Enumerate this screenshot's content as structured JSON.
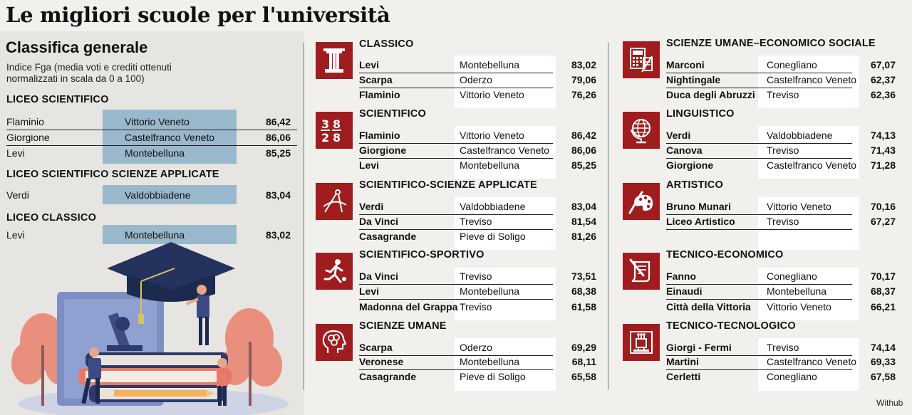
{
  "title": "Le migliori scuole per l'università",
  "left": {
    "heading": "Classifica generale",
    "subtitle": "Indice Fga (media voti e crediti ottenuti normalizzati in scala da 0 a 100)",
    "sections": [
      {
        "title": "LICEO SCIENTIFICO",
        "rows": [
          {
            "name": "Flaminio",
            "city": "Vittorio Veneto",
            "value": "86,42"
          },
          {
            "name": "Giorgione",
            "city": "Castelfranco Veneto",
            "value": "86,06"
          },
          {
            "name": "Levi",
            "city": "Montebelluna",
            "value": "85,25"
          }
        ]
      },
      {
        "title": "LICEO SCIENTIFICO SCIENZE APPLICATE",
        "rows": [
          {
            "name": "Verdi",
            "city": "Valdobbiadene",
            "value": "83,04"
          }
        ]
      },
      {
        "title": "LICEO CLASSICO",
        "rows": [
          {
            "name": "Levi",
            "city": "Montebelluna",
            "value": "83,02"
          }
        ]
      }
    ]
  },
  "categories": [
    {
      "title": "CLASSICO",
      "icon": "column-icon",
      "rows": [
        {
          "name": "Levi",
          "city": "Montebelluna",
          "value": "83,02"
        },
        {
          "name": "Scarpa",
          "city": "Oderzo",
          "value": "79,06"
        },
        {
          "name": "Flaminio",
          "city": "Vittorio Veneto",
          "value": "76,26"
        }
      ]
    },
    {
      "title": "SCIENTIFICO",
      "icon": "fractions-icon",
      "rows": [
        {
          "name": "Flaminio",
          "city": "Vittorio Veneto",
          "value": "86,42"
        },
        {
          "name": "Giorgione",
          "city": "Castelfranco Veneto",
          "value": "86,06"
        },
        {
          "name": "Levi",
          "city": "Montebelluna",
          "value": "85,25"
        }
      ]
    },
    {
      "title": "SCIENTIFICO-SCIENZE APPLICATE",
      "icon": "compass-icon",
      "rows": [
        {
          "name": "Verdi",
          "city": "Valdobbiadene",
          "value": "83,04"
        },
        {
          "name": "Da Vinci",
          "city": "Treviso",
          "value": "81,54"
        },
        {
          "name": "Casagrande",
          "city": "Pieve di Soligo",
          "value": "81,26"
        }
      ]
    },
    {
      "title": "SCIENTIFICO-SPORTIVO",
      "icon": "runner-icon",
      "rows": [
        {
          "name": "Da Vinci",
          "city": "Treviso",
          "value": "73,51"
        },
        {
          "name": "Levi",
          "city": "Montebelluna",
          "value": "68,38"
        },
        {
          "name": "Madonna del Grappa",
          "city": "Treviso",
          "value": "61,58"
        }
      ]
    },
    {
      "title": "SCIENZE UMANE",
      "icon": "brain-head-icon",
      "rows": [
        {
          "name": "Scarpa",
          "city": "Oderzo",
          "value": "69,29"
        },
        {
          "name": "Veronese",
          "city": "Montebelluna",
          "value": "68,11"
        },
        {
          "name": "Casagrande",
          "city": "Pieve di Soligo",
          "value": "65,58"
        }
      ]
    },
    {
      "title": "SCIENZE UMANE–ECONOMICO SOCIALE",
      "icon": "calculator-icon",
      "rows": [
        {
          "name": "Marconi",
          "city": "Conegliano",
          "value": "67,07"
        },
        {
          "name": "Nightingale",
          "city": "Castelfranco Veneto",
          "value": "62,37"
        },
        {
          "name": "Duca degli Abruzzi",
          "city": "Treviso",
          "value": "62,36"
        }
      ]
    },
    {
      "title": "LINGUISTICO",
      "icon": "globe-icon",
      "rows": [
        {
          "name": "Verdi",
          "city": "Valdobbiadene",
          "value": "74,13"
        },
        {
          "name": "Canova",
          "city": "Treviso",
          "value": "71,43"
        },
        {
          "name": "Giorgione",
          "city": "Castelfranco Veneto",
          "value": "71,28"
        }
      ]
    },
    {
      "title": "ARTISTICO",
      "icon": "palette-icon",
      "rows": [
        {
          "name": "Bruno Munari",
          "city": "Vittorio Veneto",
          "value": "70,16"
        },
        {
          "name": "Liceo Artistico",
          "city": "Treviso",
          "value": "67,27"
        }
      ]
    },
    {
      "title": "TECNICO-ECONOMICO",
      "icon": "scroll-pen-icon",
      "rows": [
        {
          "name": "Fanno",
          "city": "Conegliano",
          "value": "70,17"
        },
        {
          "name": "Einaudi",
          "city": "Montebelluna",
          "value": "68,37"
        },
        {
          "name": "Città della Vittoria",
          "city": "Vittorio Veneto",
          "value": "66,21"
        }
      ]
    },
    {
      "title": "TECNICO-TECNOLOGICO",
      "icon": "circuit-board-icon",
      "rows": [
        {
          "name": "Giorgi - Fermi",
          "city": "Treviso",
          "value": "74,14"
        },
        {
          "name": "Martini",
          "city": "Castelfranco Veneto",
          "value": "69,33"
        },
        {
          "name": "Cerletti",
          "city": "Conegliano",
          "value": "67,58"
        }
      ]
    }
  ],
  "credit": "Withub",
  "colors": {
    "accent": "#9f1c1f",
    "highlight": "#9ab8cc",
    "panel": "#e6e5e1",
    "background": "#f1f0ec"
  }
}
